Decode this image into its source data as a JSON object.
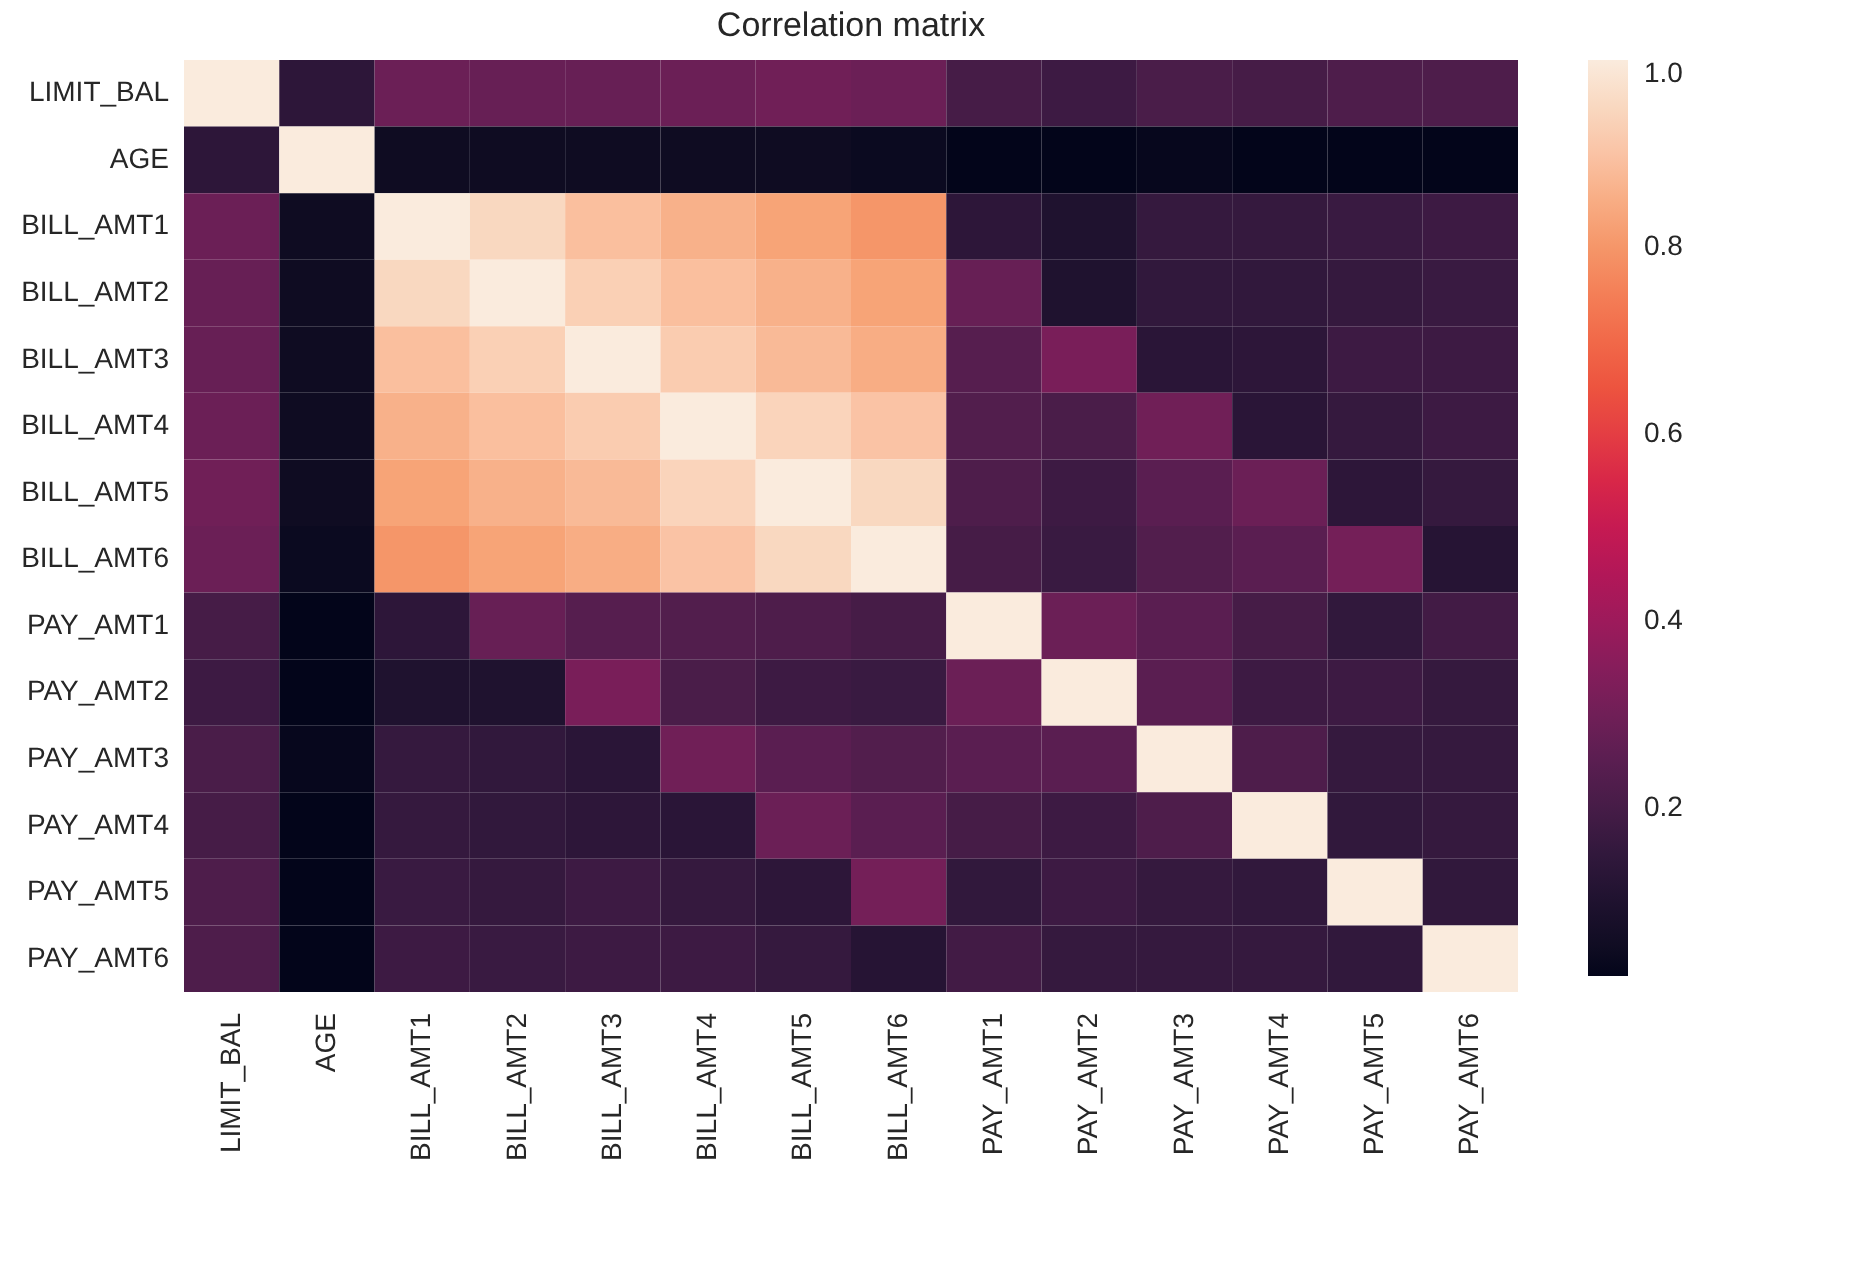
{
  "chart_data": {
    "type": "heatmap",
    "title": "Correlation matrix",
    "categories": [
      "LIMIT_BAL",
      "AGE",
      "BILL_AMT1",
      "BILL_AMT2",
      "BILL_AMT3",
      "BILL_AMT4",
      "BILL_AMT5",
      "BILL_AMT6",
      "PAY_AMT1",
      "PAY_AMT2",
      "PAY_AMT3",
      "PAY_AMT4",
      "PAY_AMT5",
      "PAY_AMT6"
    ],
    "y_categories": [
      "LIMIT_BAL",
      "AGE",
      "BILL_AMT1",
      "BILL_AMT2",
      "BILL_AMT3",
      "BILL_AMT4",
      "BILL_AMT5",
      "BILL_AMT6",
      "PAY_AMT1",
      "PAY_AMT2",
      "PAY_AMT3",
      "PAY_AMT4",
      "PAY_AMT5",
      "PAY_AMT6"
    ],
    "cells": [
      [
        1,
        0.14,
        0.29,
        0.28,
        0.28,
        0.29,
        0.3,
        0.29,
        0.2,
        0.18,
        0.21,
        0.2,
        0.22,
        0.22
      ],
      [
        0.14,
        1,
        0.05,
        0.05,
        0.05,
        0.05,
        0.05,
        0.04,
        0.02,
        0.02,
        0.03,
        0.02,
        0.02,
        0.02
      ],
      [
        0.29,
        0.05,
        1,
        0.95,
        0.89,
        0.86,
        0.83,
        0.8,
        0.14,
        0.1,
        0.16,
        0.16,
        0.17,
        0.18
      ],
      [
        0.28,
        0.05,
        0.95,
        1,
        0.93,
        0.89,
        0.86,
        0.83,
        0.28,
        0.1,
        0.15,
        0.15,
        0.16,
        0.17
      ],
      [
        0.28,
        0.05,
        0.89,
        0.93,
        1,
        0.92,
        0.88,
        0.85,
        0.24,
        0.32,
        0.13,
        0.14,
        0.18,
        0.18
      ],
      [
        0.29,
        0.05,
        0.86,
        0.89,
        0.92,
        1,
        0.94,
        0.9,
        0.23,
        0.21,
        0.3,
        0.13,
        0.16,
        0.18
      ],
      [
        0.3,
        0.05,
        0.83,
        0.86,
        0.88,
        0.94,
        1,
        0.95,
        0.22,
        0.18,
        0.25,
        0.29,
        0.14,
        0.16
      ],
      [
        0.29,
        0.04,
        0.8,
        0.83,
        0.85,
        0.9,
        0.95,
        1,
        0.2,
        0.17,
        0.23,
        0.25,
        0.31,
        0.12
      ],
      [
        0.2,
        0.02,
        0.14,
        0.28,
        0.24,
        0.23,
        0.22,
        0.2,
        1,
        0.29,
        0.25,
        0.2,
        0.15,
        0.19
      ],
      [
        0.18,
        0.02,
        0.1,
        0.1,
        0.32,
        0.21,
        0.18,
        0.17,
        0.29,
        1,
        0.25,
        0.18,
        0.18,
        0.16
      ],
      [
        0.21,
        0.03,
        0.16,
        0.15,
        0.13,
        0.3,
        0.25,
        0.23,
        0.25,
        0.25,
        1,
        0.22,
        0.16,
        0.16
      ],
      [
        0.2,
        0.02,
        0.16,
        0.15,
        0.14,
        0.13,
        0.29,
        0.25,
        0.2,
        0.18,
        0.22,
        1,
        0.15,
        0.16
      ],
      [
        0.22,
        0.02,
        0.17,
        0.16,
        0.18,
        0.16,
        0.14,
        0.31,
        0.15,
        0.18,
        0.16,
        0.15,
        1,
        0.15
      ],
      [
        0.22,
        0.02,
        0.18,
        0.17,
        0.18,
        0.18,
        0.16,
        0.12,
        0.19,
        0.16,
        0.16,
        0.16,
        0.15,
        1
      ]
    ],
    "clim": [
      0.02,
      1.0
    ],
    "cticks": [
      0.2,
      0.4,
      0.6,
      0.8,
      {
        "value": 1,
        "label": "1.0"
      }
    ]
  }
}
